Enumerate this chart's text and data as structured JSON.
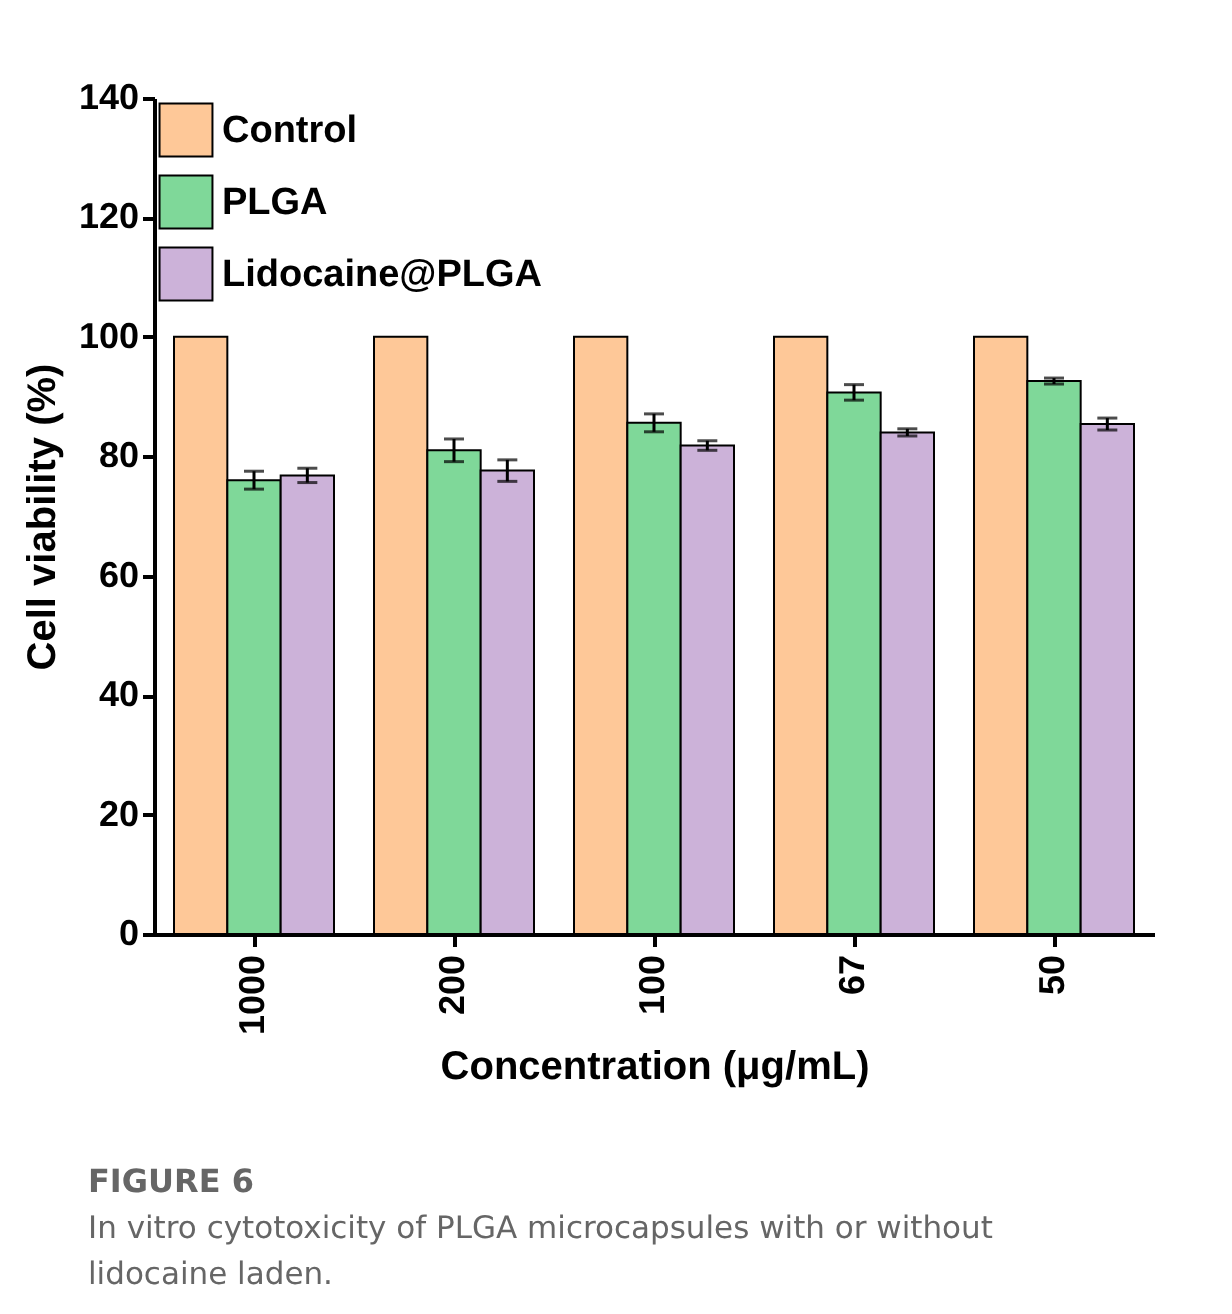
{
  "chart_data": {
    "type": "bar",
    "xlabel": "Concentration (μg/mL)",
    "ylabel": "Cell viability (%)",
    "categories": [
      "1000",
      "200",
      "100",
      "67",
      "50"
    ],
    "series": [
      {
        "name": "Control",
        "color": "#fec898",
        "values": [
          100,
          100,
          100,
          100,
          100
        ]
      },
      {
        "name": "PLGA",
        "color": "#7fd899",
        "values": [
          76,
          81,
          85.6,
          90.7,
          92.6
        ],
        "errors": [
          1.5,
          1.9,
          1.5,
          1.3,
          0.5
        ]
      },
      {
        "name": "Lidocaine@PLGA",
        "color": "#ccb2d9",
        "values": [
          76.8,
          77.6,
          81.8,
          84,
          85.4
        ],
        "errors": [
          1.2,
          1.8,
          0.8,
          0.6,
          1
        ]
      }
    ],
    "ylim": [
      0,
      140
    ],
    "yticks": [
      0,
      20,
      40,
      60,
      80,
      100,
      120,
      140
    ],
    "grid": false,
    "legend": "top left",
    "annotations": [
      "FIGURE 6",
      "In vitro cytotoxicity of PLGA microcapsules with or without lidocaine laden."
    ]
  }
}
